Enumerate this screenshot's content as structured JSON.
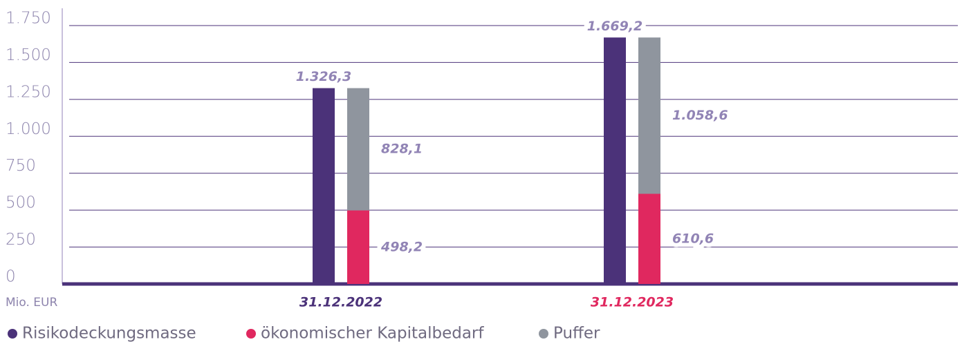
{
  "chart_data": {
    "type": "bar",
    "categories": [
      "31.12.2022",
      "31.12.2023"
    ],
    "category_label_colors": [
      "#4b3279",
      "#e0285f"
    ],
    "y_axis_label": "Mio. EUR",
    "series": [
      {
        "name": "Risikodeckungsmasse",
        "color": "#4b3279",
        "values": [
          1326.3,
          1669.2
        ],
        "value_labels": [
          "1.326,3",
          "1.669,2"
        ]
      },
      {
        "name": "ökonomischer Kapitalbedarf",
        "color": "#e0285f",
        "values": [
          498.2,
          610.6
        ],
        "value_labels": [
          "498,2",
          "610,6"
        ],
        "stack": "s"
      },
      {
        "name": "Puffer",
        "color": "#8f959e",
        "values": [
          828.1,
          1058.6
        ],
        "value_labels": [
          "828,1",
          "1.058,6"
        ],
        "stack": "s"
      }
    ],
    "ylim": [
      0,
      1750
    ],
    "yticks": [
      0,
      250,
      500,
      750,
      {
        "value": 1000,
        "label": "1.000"
      },
      {
        "value": 1250,
        "label": "1.250"
      },
      {
        "value": 1500,
        "label": "1.500"
      },
      {
        "value": 1750,
        "label": "1.750"
      }
    ],
    "grid": true
  }
}
